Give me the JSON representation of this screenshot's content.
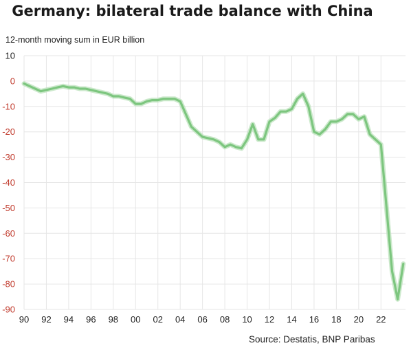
{
  "title": "Germany: bilateral trade balance with China",
  "source": "Source: Destatis, BNP Paribas",
  "colors": {
    "line": "#7dc67f",
    "glow": "#bfe3bf",
    "grid": "#e6e6e6",
    "negative_tick": "#c0392b"
  },
  "chart_data": {
    "type": "line",
    "title": "Germany: bilateral trade balance with China",
    "ylabel": "12-month moving sum in EUR billion",
    "xlabel": "",
    "ylim": [
      -90,
      10
    ],
    "xlim": [
      1990,
      2024.2
    ],
    "grid": true,
    "yticks": [
      "10",
      "0",
      "-10",
      "-20",
      "-30",
      "-40",
      "-50",
      "-60",
      "-70",
      "-80",
      "-90"
    ],
    "xticks": [
      {
        "year": 1990,
        "label": "90"
      },
      {
        "year": 1992,
        "label": "92"
      },
      {
        "year": 1994,
        "label": "94"
      },
      {
        "year": 1996,
        "label": "96"
      },
      {
        "year": 1998,
        "label": "98"
      },
      {
        "year": 2000,
        "label": "00"
      },
      {
        "year": 2002,
        "label": "02"
      },
      {
        "year": 2004,
        "label": "04"
      },
      {
        "year": 2006,
        "label": "06"
      },
      {
        "year": 2008,
        "label": "08"
      },
      {
        "year": 2010,
        "label": "10"
      },
      {
        "year": 2012,
        "label": "12"
      },
      {
        "year": 2014,
        "label": "14"
      },
      {
        "year": 2016,
        "label": "16"
      },
      {
        "year": 2018,
        "label": "18"
      },
      {
        "year": 2020,
        "label": "20"
      },
      {
        "year": 2022,
        "label": "22"
      }
    ],
    "series": [
      {
        "x": [
          1990.0,
          1990.5,
          1991.0,
          1991.5,
          1992.0,
          1992.5,
          1993.0,
          1993.5,
          1994.0,
          1994.5,
          1995.0,
          1995.5,
          1996.0,
          1996.5,
          1997.0,
          1997.5,
          1998.0,
          1998.5,
          1999.0,
          1999.5,
          2000.0,
          2000.5,
          2001.0,
          2001.5,
          2002.0,
          2002.5,
          2003.0,
          2003.5,
          2004.0,
          2004.5,
          2005.0,
          2005.5,
          2006.0,
          2006.5,
          2007.0,
          2007.5,
          2008.0,
          2008.5,
          2009.0,
          2009.5,
          2010.0,
          2010.5,
          2011.0,
          2011.5,
          2012.0,
          2012.5,
          2013.0,
          2013.5,
          2014.0,
          2014.5,
          2015.0,
          2015.5,
          2016.0,
          2016.5,
          2017.0,
          2017.5,
          2018.0,
          2018.5,
          2019.0,
          2019.5,
          2020.0,
          2020.5,
          2021.0,
          2021.5,
          2022.0,
          2022.5,
          2023.0,
          2023.5,
          2024.0
        ],
        "values": [
          -1,
          -2,
          -3,
          -4,
          -3.5,
          -3,
          -2.5,
          -2,
          -2.5,
          -2.5,
          -3,
          -3,
          -3.5,
          -4,
          -4.5,
          -5,
          -6,
          -6,
          -6.5,
          -7,
          -9,
          -9,
          -8,
          -7.5,
          -7.5,
          -7,
          -7,
          -7,
          -8,
          -13,
          -18,
          -20,
          -22,
          -22.5,
          -23,
          -24,
          -26,
          -25,
          -26,
          -26.5,
          -23,
          -17,
          -23,
          -23,
          -16,
          -14.5,
          -12,
          -12,
          -11,
          -7,
          -5,
          -10,
          -20,
          -21,
          -19,
          -16,
          -16,
          -15,
          -13,
          -13,
          -15,
          -14,
          -21,
          -23,
          -25,
          -50,
          -75,
          -86,
          -72
        ]
      }
    ]
  }
}
